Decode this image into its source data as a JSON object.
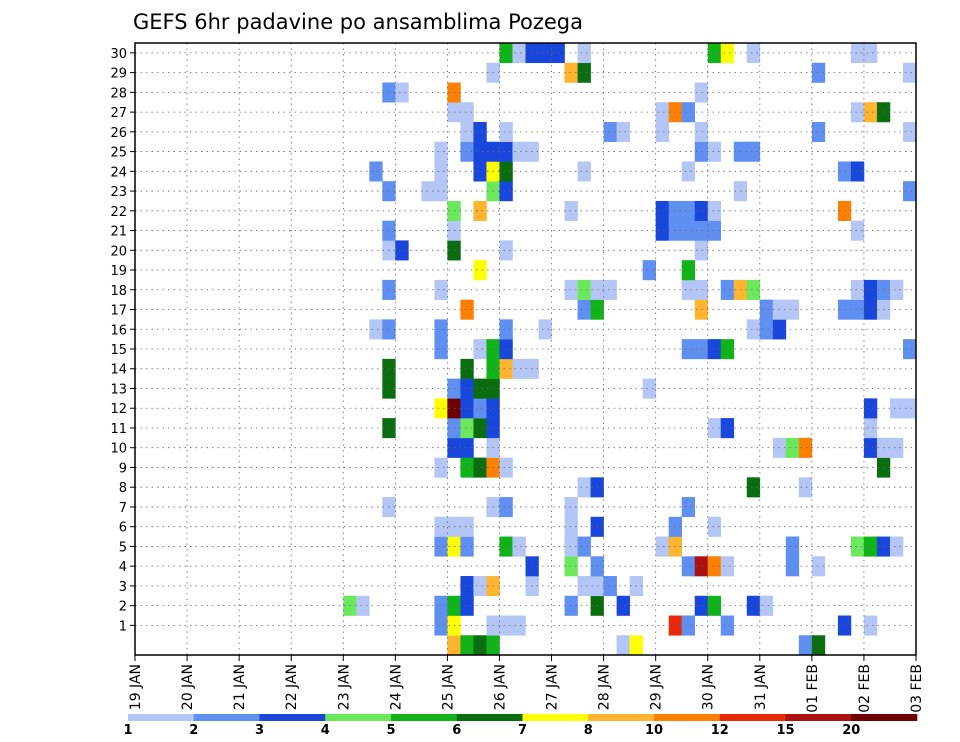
{
  "chart_data": {
    "type": "heatmap",
    "title": "GEFS 6hr padavine po ansamblima Pozega",
    "x_tick_labels": [
      "19 JAN",
      "20 JAN",
      "21 JAN",
      "22 JAN",
      "23 JAN",
      "24 JAN",
      "25 JAN",
      "26 JAN",
      "27 JAN",
      "28 JAN",
      "29 JAN",
      "30 JAN",
      "31 JAN",
      "01 FEB",
      "02 FEB",
      "03 FEB"
    ],
    "y_tick_labels": [
      "1",
      "2",
      "3",
      "4",
      "5",
      "6",
      "7",
      "8",
      "9",
      "10",
      "11",
      "12",
      "13",
      "14",
      "15",
      "16",
      "17",
      "18",
      "19",
      "20",
      "21",
      "22",
      "23",
      "24",
      "25",
      "26",
      "27",
      "28",
      "29",
      "30"
    ],
    "steps_per_day": 4,
    "members": 31,
    "color_levels": [
      "1",
      "2",
      "3",
      "4",
      "5",
      "6",
      "7",
      "8",
      "10",
      "12",
      "15",
      "20"
    ],
    "colors": [
      "#b3c6f5",
      "#5f8ff0",
      "#1a47db",
      "#6be85c",
      "#11b31a",
      "#0a6e10",
      "#ffff00",
      "#ffb52e",
      "#ff7f00",
      "#e82a0a",
      "#aa1212",
      "#6e0000"
    ],
    "cells": [
      [
        0,
        24,
        7
      ],
      [
        0,
        25,
        4
      ],
      [
        0,
        26,
        5
      ],
      [
        0,
        27,
        4
      ],
      [
        0,
        37,
        0
      ],
      [
        0,
        38,
        6
      ],
      [
        0,
        51,
        1
      ],
      [
        0,
        52,
        5
      ],
      [
        1,
        23,
        1
      ],
      [
        1,
        24,
        6
      ],
      [
        1,
        27,
        0
      ],
      [
        1,
        28,
        0
      ],
      [
        1,
        29,
        0
      ],
      [
        1,
        41,
        9
      ],
      [
        1,
        42,
        1
      ],
      [
        1,
        45,
        1
      ],
      [
        1,
        54,
        2
      ],
      [
        1,
        56,
        0
      ],
      [
        2,
        16,
        3
      ],
      [
        2,
        17,
        0
      ],
      [
        2,
        23,
        1
      ],
      [
        2,
        24,
        4
      ],
      [
        2,
        25,
        2
      ],
      [
        2,
        33,
        1
      ],
      [
        2,
        35,
        5
      ],
      [
        2,
        37,
        2
      ],
      [
        2,
        43,
        2
      ],
      [
        2,
        44,
        4
      ],
      [
        2,
        47,
        2
      ],
      [
        2,
        48,
        0
      ],
      [
        3,
        25,
        2
      ],
      [
        3,
        26,
        0
      ],
      [
        3,
        27,
        7
      ],
      [
        3,
        30,
        0
      ],
      [
        3,
        34,
        0
      ],
      [
        3,
        35,
        0
      ],
      [
        3,
        36,
        1
      ],
      [
        3,
        38,
        0
      ],
      [
        4,
        30,
        2
      ],
      [
        4,
        33,
        3
      ],
      [
        4,
        35,
        1
      ],
      [
        4,
        42,
        1
      ],
      [
        4,
        43,
        10
      ],
      [
        4,
        44,
        8
      ],
      [
        4,
        45,
        0
      ],
      [
        4,
        50,
        1
      ],
      [
        4,
        52,
        0
      ],
      [
        5,
        23,
        1
      ],
      [
        5,
        24,
        6
      ],
      [
        5,
        25,
        1
      ],
      [
        5,
        28,
        4
      ],
      [
        5,
        29,
        0
      ],
      [
        5,
        33,
        0
      ],
      [
        5,
        34,
        1
      ],
      [
        5,
        40,
        0
      ],
      [
        5,
        41,
        7
      ],
      [
        5,
        50,
        1
      ],
      [
        5,
        55,
        3
      ],
      [
        5,
        56,
        4
      ],
      [
        5,
        57,
        2
      ],
      [
        5,
        58,
        0
      ],
      [
        6,
        23,
        0
      ],
      [
        6,
        24,
        0
      ],
      [
        6,
        25,
        0
      ],
      [
        6,
        33,
        0
      ],
      [
        6,
        35,
        2
      ],
      [
        6,
        41,
        1
      ],
      [
        6,
        44,
        0
      ],
      [
        7,
        19,
        0
      ],
      [
        7,
        27,
        0
      ],
      [
        7,
        28,
        1
      ],
      [
        7,
        33,
        0
      ],
      [
        7,
        42,
        1
      ],
      [
        8,
        34,
        0
      ],
      [
        8,
        35,
        2
      ],
      [
        8,
        47,
        5
      ],
      [
        8,
        51,
        0
      ],
      [
        9,
        23,
        0
      ],
      [
        9,
        25,
        4
      ],
      [
        9,
        26,
        5
      ],
      [
        9,
        27,
        8
      ],
      [
        9,
        28,
        0
      ],
      [
        9,
        57,
        5
      ],
      [
        10,
        24,
        2
      ],
      [
        10,
        25,
        2
      ],
      [
        10,
        27,
        0
      ],
      [
        10,
        49,
        0
      ],
      [
        10,
        50,
        3
      ],
      [
        10,
        51,
        8
      ],
      [
        10,
        56,
        2
      ],
      [
        10,
        57,
        0
      ],
      [
        10,
        58,
        0
      ],
      [
        11,
        19,
        5
      ],
      [
        11,
        24,
        1
      ],
      [
        11,
        25,
        3
      ],
      [
        11,
        26,
        5
      ],
      [
        11,
        27,
        2
      ],
      [
        11,
        44,
        0
      ],
      [
        11,
        45,
        2
      ],
      [
        11,
        56,
        0
      ],
      [
        12,
        23,
        6
      ],
      [
        12,
        24,
        11
      ],
      [
        12,
        25,
        2
      ],
      [
        12,
        26,
        1
      ],
      [
        12,
        27,
        2
      ],
      [
        12,
        56,
        2
      ],
      [
        12,
        58,
        0
      ],
      [
        12,
        59,
        0
      ],
      [
        13,
        19,
        5
      ],
      [
        13,
        24,
        1
      ],
      [
        13,
        25,
        2
      ],
      [
        13,
        26,
        5
      ],
      [
        13,
        27,
        5
      ],
      [
        13,
        39,
        0
      ],
      [
        14,
        19,
        5
      ],
      [
        14,
        25,
        5
      ],
      [
        14,
        27,
        4
      ],
      [
        14,
        28,
        7
      ],
      [
        14,
        29,
        0
      ],
      [
        14,
        30,
        0
      ],
      [
        15,
        23,
        1
      ],
      [
        15,
        26,
        0
      ],
      [
        15,
        27,
        4
      ],
      [
        15,
        28,
        2
      ],
      [
        15,
        42,
        1
      ],
      [
        15,
        43,
        1
      ],
      [
        15,
        44,
        2
      ],
      [
        15,
        45,
        4
      ],
      [
        15,
        59,
        1
      ],
      [
        16,
        18,
        0
      ],
      [
        16,
        19,
        1
      ],
      [
        16,
        23,
        1
      ],
      [
        16,
        28,
        1
      ],
      [
        16,
        31,
        0
      ],
      [
        16,
        47,
        0
      ],
      [
        16,
        48,
        1
      ],
      [
        16,
        49,
        2
      ],
      [
        17,
        25,
        8
      ],
      [
        17,
        34,
        1
      ],
      [
        17,
        35,
        4
      ],
      [
        17,
        43,
        7
      ],
      [
        17,
        48,
        1
      ],
      [
        17,
        49,
        0
      ],
      [
        17,
        50,
        0
      ],
      [
        17,
        54,
        1
      ],
      [
        17,
        55,
        1
      ],
      [
        17,
        56,
        2
      ],
      [
        17,
        57,
        0
      ],
      [
        18,
        19,
        1
      ],
      [
        18,
        23,
        0
      ],
      [
        18,
        33,
        0
      ],
      [
        18,
        34,
        3
      ],
      [
        18,
        35,
        0
      ],
      [
        18,
        36,
        0
      ],
      [
        18,
        42,
        0
      ],
      [
        18,
        43,
        0
      ],
      [
        18,
        45,
        1
      ],
      [
        18,
        46,
        7
      ],
      [
        18,
        47,
        3
      ],
      [
        18,
        55,
        0
      ],
      [
        18,
        56,
        2
      ],
      [
        18,
        57,
        1
      ],
      [
        18,
        58,
        0
      ],
      [
        19,
        26,
        6
      ],
      [
        19,
        39,
        1
      ],
      [
        19,
        42,
        4
      ],
      [
        20,
        19,
        0
      ],
      [
        20,
        20,
        2
      ],
      [
        20,
        24,
        5
      ],
      [
        20,
        28,
        0
      ],
      [
        20,
        43,
        0
      ],
      [
        21,
        19,
        1
      ],
      [
        21,
        24,
        0
      ],
      [
        21,
        40,
        2
      ],
      [
        21,
        41,
        1
      ],
      [
        21,
        42,
        1
      ],
      [
        21,
        43,
        1
      ],
      [
        21,
        44,
        1
      ],
      [
        21,
        55,
        0
      ],
      [
        22,
        24,
        3
      ],
      [
        22,
        26,
        7
      ],
      [
        22,
        33,
        0
      ],
      [
        22,
        40,
        2
      ],
      [
        22,
        41,
        1
      ],
      [
        22,
        42,
        1
      ],
      [
        22,
        43,
        2
      ],
      [
        22,
        44,
        0
      ],
      [
        22,
        54,
        8
      ],
      [
        23,
        19,
        1
      ],
      [
        23,
        22,
        0
      ],
      [
        23,
        23,
        0
      ],
      [
        23,
        27,
        3
      ],
      [
        23,
        28,
        2
      ],
      [
        23,
        46,
        0
      ],
      [
        23,
        59,
        1
      ],
      [
        24,
        18,
        1
      ],
      [
        24,
        23,
        0
      ],
      [
        24,
        26,
        2
      ],
      [
        24,
        27,
        6
      ],
      [
        24,
        28,
        5
      ],
      [
        24,
        34,
        0
      ],
      [
        24,
        42,
        0
      ],
      [
        24,
        54,
        1
      ],
      [
        24,
        55,
        2
      ],
      [
        25,
        23,
        0
      ],
      [
        25,
        25,
        1
      ],
      [
        25,
        26,
        2
      ],
      [
        25,
        27,
        2
      ],
      [
        25,
        28,
        2
      ],
      [
        25,
        29,
        0
      ],
      [
        25,
        30,
        0
      ],
      [
        25,
        43,
        1
      ],
      [
        25,
        44,
        0
      ],
      [
        25,
        46,
        1
      ],
      [
        25,
        47,
        1
      ],
      [
        26,
        25,
        0
      ],
      [
        26,
        26,
        2
      ],
      [
        26,
        28,
        0
      ],
      [
        26,
        36,
        1
      ],
      [
        26,
        37,
        0
      ],
      [
        26,
        40,
        0
      ],
      [
        26,
        43,
        0
      ],
      [
        26,
        52,
        1
      ],
      [
        26,
        59,
        0
      ],
      [
        27,
        24,
        0
      ],
      [
        27,
        25,
        0
      ],
      [
        27,
        40,
        0
      ],
      [
        27,
        41,
        8
      ],
      [
        27,
        42,
        1
      ],
      [
        27,
        55,
        0
      ],
      [
        27,
        56,
        7
      ],
      [
        27,
        57,
        5
      ],
      [
        28,
        19,
        1
      ],
      [
        28,
        20,
        0
      ],
      [
        28,
        24,
        8
      ],
      [
        28,
        43,
        0
      ],
      [
        29,
        27,
        0
      ],
      [
        29,
        33,
        7
      ],
      [
        29,
        34,
        5
      ],
      [
        29,
        52,
        1
      ],
      [
        29,
        59,
        0
      ],
      [
        30,
        28,
        4
      ],
      [
        30,
        29,
        0
      ],
      [
        30,
        30,
        2
      ],
      [
        30,
        31,
        2
      ],
      [
        30,
        32,
        2
      ],
      [
        30,
        34,
        0
      ],
      [
        30,
        44,
        4
      ],
      [
        30,
        45,
        6
      ],
      [
        30,
        47,
        0
      ],
      [
        30,
        55,
        0
      ],
      [
        30,
        56,
        0
      ]
    ]
  }
}
